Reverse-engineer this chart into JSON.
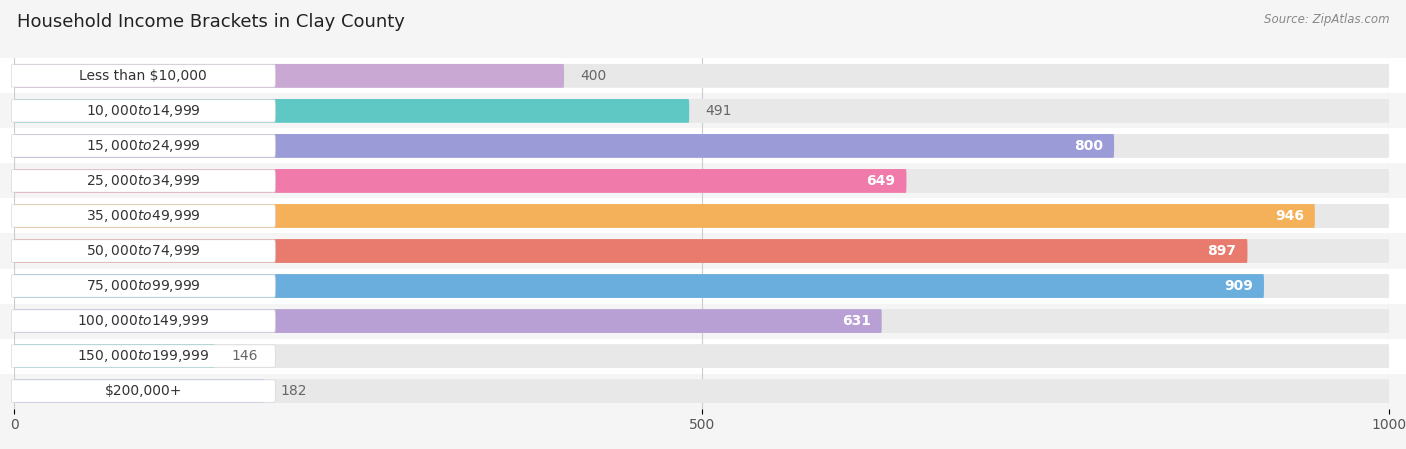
{
  "title": "Household Income Brackets in Clay County",
  "source": "Source: ZipAtlas.com",
  "categories": [
    "Less than $10,000",
    "$10,000 to $14,999",
    "$15,000 to $24,999",
    "$25,000 to $34,999",
    "$35,000 to $49,999",
    "$50,000 to $74,999",
    "$75,000 to $99,999",
    "$100,000 to $149,999",
    "$150,000 to $199,999",
    "$200,000+"
  ],
  "values": [
    400,
    491,
    800,
    649,
    946,
    897,
    909,
    631,
    146,
    182
  ],
  "bar_colors": [
    "#c9a8d4",
    "#60c8c4",
    "#9b9bd8",
    "#f07aaa",
    "#f5b05a",
    "#e87a6e",
    "#6aaede",
    "#b89fd4",
    "#6ecece",
    "#aab4e8"
  ],
  "value_inside": [
    false,
    false,
    true,
    true,
    true,
    true,
    true,
    true,
    false,
    false
  ],
  "xlim": [
    0,
    1000
  ],
  "xticks": [
    0,
    500,
    1000
  ],
  "background_color": "#f5f5f5",
  "bar_bg_color": "#e8e8e8",
  "row_bg_colors": [
    "#ffffff",
    "#f5f5f5"
  ],
  "title_fontsize": 13,
  "label_fontsize": 10,
  "value_fontsize": 10
}
